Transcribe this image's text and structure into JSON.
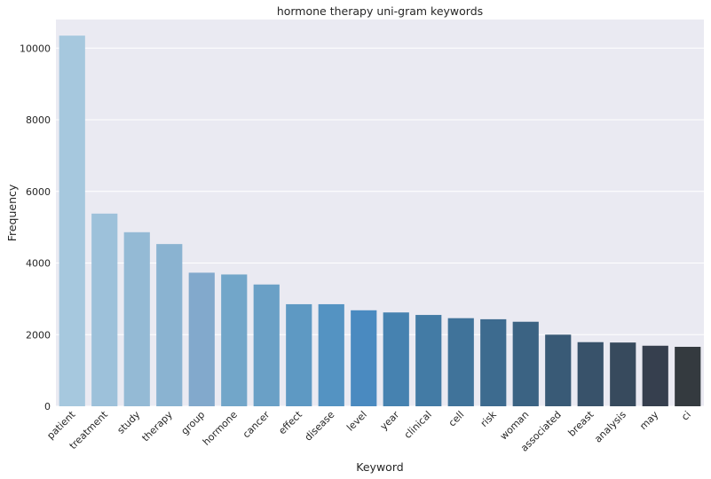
{
  "chart_data": {
    "type": "bar",
    "title": "hormone therapy uni-gram keywords",
    "xlabel": "Keyword",
    "ylabel": "Frequency",
    "ylim": [
      0,
      10800
    ],
    "yticks": [
      0,
      2000,
      4000,
      6000,
      8000,
      10000
    ],
    "grid": true,
    "categories": [
      "patient",
      "treatment",
      "study",
      "therapy",
      "group",
      "hormone",
      "cancer",
      "effect",
      "disease",
      "level",
      "year",
      "clinical",
      "cell",
      "risk",
      "woman",
      "associated",
      "breast",
      "analysis",
      "may",
      "ci"
    ],
    "values": [
      10350,
      5380,
      4860,
      4530,
      3730,
      3680,
      3400,
      2850,
      2850,
      2680,
      2620,
      2550,
      2460,
      2430,
      2360,
      2000,
      1790,
      1780,
      1690,
      1660
    ],
    "colors": [
      "#a6c8de",
      "#9dc1da",
      "#94bad5",
      "#8ab3d1",
      "#82a9cc",
      "#72a6c9",
      "#6aa0c6",
      "#5e99c3",
      "#5493c2",
      "#4a8ac0",
      "#4682b0",
      "#437ba5",
      "#40739a",
      "#3d6b8f",
      "#3b6383",
      "#395a76",
      "#38526a",
      "#374a5d",
      "#363f4e",
      "#343a3f"
    ],
    "colors_meta": {
      "plot_background": "#eaeaf2",
      "grid": "#ffffff"
    }
  }
}
